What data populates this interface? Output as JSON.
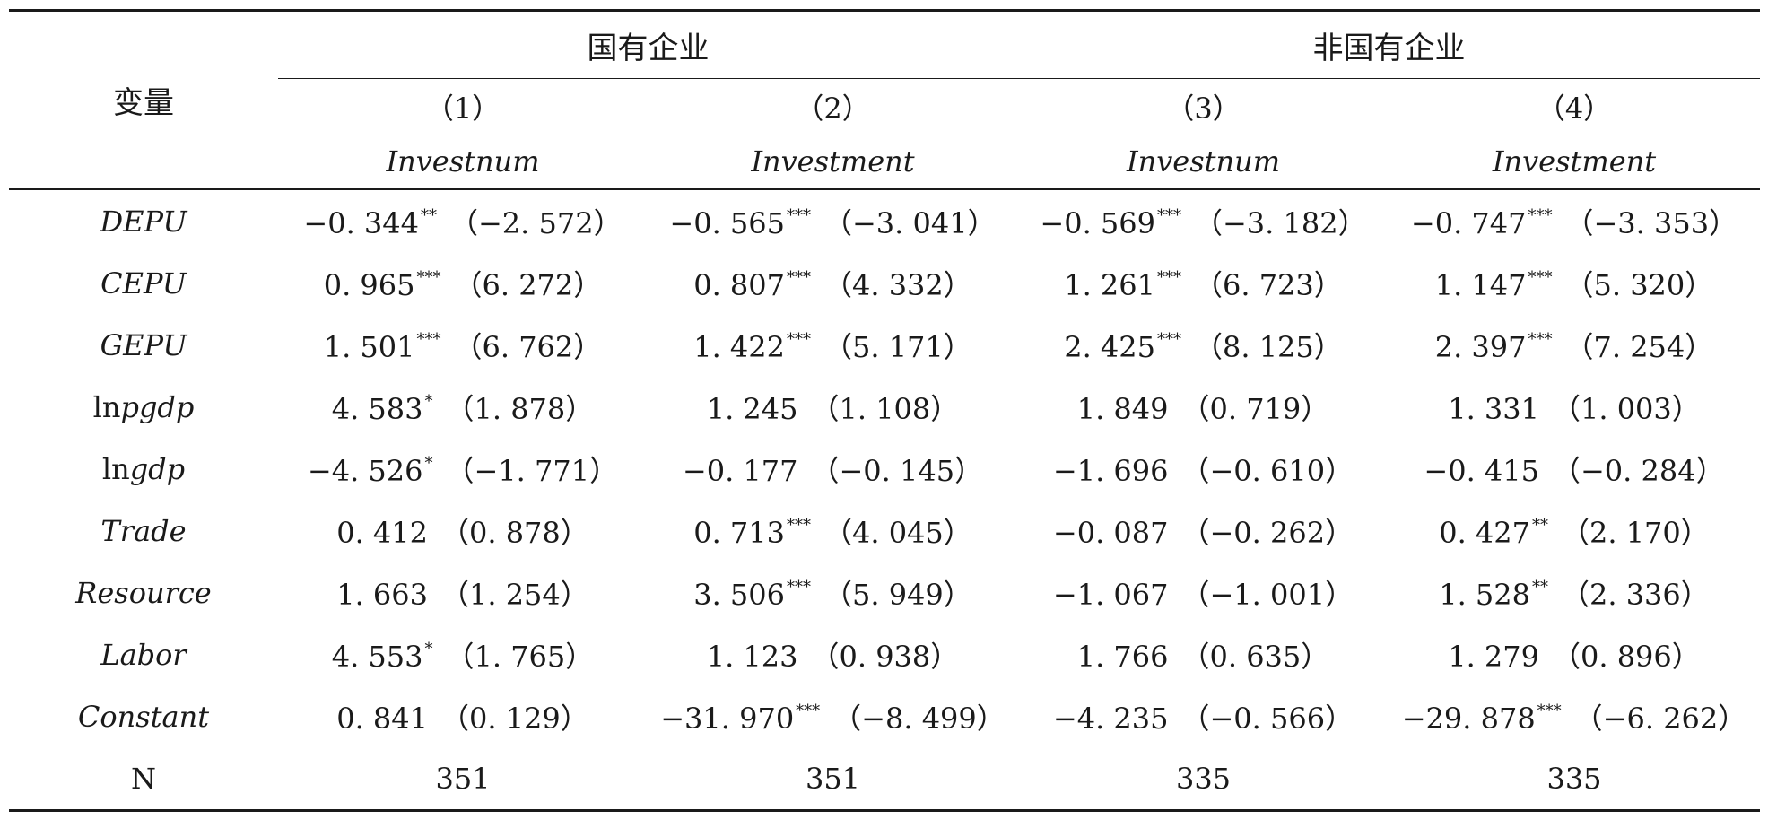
{
  "header": {
    "variable_label": "变量",
    "groups": [
      {
        "label": "国有企业"
      },
      {
        "label": "非国有企业"
      }
    ],
    "columns": [
      {
        "number": "（1）",
        "dep_var": "Investnum"
      },
      {
        "number": "（2）",
        "dep_var": "Investment"
      },
      {
        "number": "（3）",
        "dep_var": "Investnum"
      },
      {
        "number": "（4）",
        "dep_var": "Investment"
      }
    ]
  },
  "rows": [
    {
      "prefix": "",
      "name": "DEPU",
      "cells": [
        {
          "coef": "−0. 344",
          "stars": "**",
          "t": "（−2. 572）"
        },
        {
          "coef": "−0. 565",
          "stars": "***",
          "t": "（−3. 041）"
        },
        {
          "coef": "−0. 569",
          "stars": "***",
          "t": "（−3. 182）"
        },
        {
          "coef": "−0. 747",
          "stars": "***",
          "t": "（−3. 353）"
        }
      ]
    },
    {
      "prefix": "",
      "name": "CEPU",
      "cells": [
        {
          "coef": "0. 965",
          "stars": "***",
          "t": "（6. 272）"
        },
        {
          "coef": "0. 807",
          "stars": "***",
          "t": "（4. 332）"
        },
        {
          "coef": "1. 261",
          "stars": "***",
          "t": "（6. 723）"
        },
        {
          "coef": "1. 147",
          "stars": "***",
          "t": "（5. 320）"
        }
      ]
    },
    {
      "prefix": "",
      "name": "GEPU",
      "cells": [
        {
          "coef": "1. 501",
          "stars": "***",
          "t": "（6. 762）"
        },
        {
          "coef": "1. 422",
          "stars": "***",
          "t": "（5. 171）"
        },
        {
          "coef": "2. 425",
          "stars": "***",
          "t": "（8. 125）"
        },
        {
          "coef": "2. 397",
          "stars": "***",
          "t": "（7. 254）"
        }
      ]
    },
    {
      "prefix": "ln",
      "name": "pgdp",
      "cells": [
        {
          "coef": "4. 583",
          "stars": "*",
          "t": "（1. 878）"
        },
        {
          "coef": "1. 245",
          "stars": "",
          "t": "（1. 108）"
        },
        {
          "coef": "1. 849",
          "stars": "",
          "t": "（0. 719）"
        },
        {
          "coef": "1. 331",
          "stars": "",
          "t": "（1. 003）"
        }
      ]
    },
    {
      "prefix": "ln",
      "name": "gdp",
      "cells": [
        {
          "coef": "−4. 526",
          "stars": "*",
          "t": "（−1. 771）"
        },
        {
          "coef": "−0. 177",
          "stars": "",
          "t": "（−0. 145）"
        },
        {
          "coef": "−1. 696",
          "stars": "",
          "t": "（−0. 610）"
        },
        {
          "coef": "−0. 415",
          "stars": "",
          "t": "（−0. 284）"
        }
      ]
    },
    {
      "prefix": "",
      "name": "Trade",
      "cells": [
        {
          "coef": "0. 412",
          "stars": "",
          "t": "（0. 878）"
        },
        {
          "coef": "0. 713",
          "stars": "***",
          "t": "（4. 045）"
        },
        {
          "coef": "−0. 087",
          "stars": "",
          "t": "（−0. 262）"
        },
        {
          "coef": "0. 427",
          "stars": "**",
          "t": "（2. 170）"
        }
      ]
    },
    {
      "prefix": "",
      "name": "Resource",
      "cells": [
        {
          "coef": "1. 663",
          "stars": "",
          "t": "（1. 254）"
        },
        {
          "coef": "3. 506",
          "stars": "***",
          "t": "（5. 949）"
        },
        {
          "coef": "−1. 067",
          "stars": "",
          "t": "（−1. 001）"
        },
        {
          "coef": "1. 528",
          "stars": "**",
          "t": "（2. 336）"
        }
      ]
    },
    {
      "prefix": "",
      "name": "Labor",
      "cells": [
        {
          "coef": "4. 553",
          "stars": "*",
          "t": "（1. 765）"
        },
        {
          "coef": "1. 123",
          "stars": "",
          "t": "（0. 938）"
        },
        {
          "coef": "1. 766",
          "stars": "",
          "t": "（0. 635）"
        },
        {
          "coef": "1. 279",
          "stars": "",
          "t": "（0. 896）"
        }
      ]
    },
    {
      "prefix": "",
      "name": "Constant",
      "cells": [
        {
          "coef": "0. 841",
          "stars": "",
          "t": "（0. 129）"
        },
        {
          "coef": "−31. 970",
          "stars": "***",
          "t": "（−8. 499）"
        },
        {
          "coef": "−4. 235",
          "stars": "",
          "t": "（−0. 566）"
        },
        {
          "coef": "−29. 878",
          "stars": "***",
          "t": "（−6. 262）"
        }
      ]
    }
  ],
  "n_row": {
    "label": "N",
    "values": [
      "351",
      "351",
      "335",
      "335"
    ]
  }
}
